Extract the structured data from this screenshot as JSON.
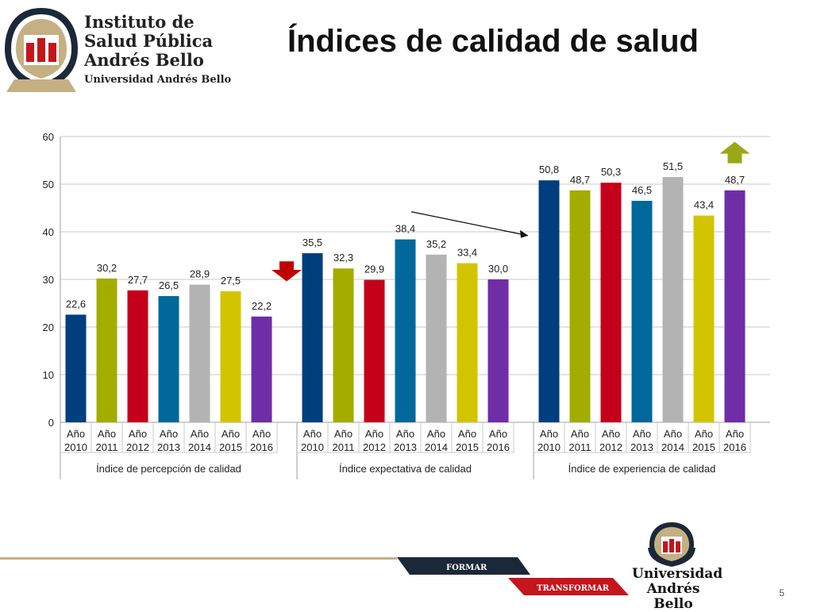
{
  "header": {
    "logo_line1": "Instituto de",
    "logo_line2": "Salud Pública",
    "logo_line3": "Andrés Bello",
    "logo_sub": "Universidad Andrés Bello",
    "title": "Índices de calidad de salud"
  },
  "footer": {
    "band1": "FORMAR",
    "band2": "TRANSFORMAR",
    "univ_line1": "Universidad",
    "univ_line2": "Andrés Bello",
    "page_number": "5"
  },
  "colors": {
    "year_colors": [
      "#003f7d",
      "#a2ad00",
      "#c4001a",
      "#00689b",
      "#b3b3b3",
      "#d3c400",
      "#6f2da8"
    ],
    "down_arrow": "#c00000",
    "up_arrow": "#9aa815",
    "brand_red": "#c4161c",
    "brand_dark": "#1b2838"
  },
  "chart_data": {
    "type": "bar",
    "title": "Índices de calidad de salud",
    "ylim": [
      0,
      60
    ],
    "yticks": [
      "0",
      "10",
      "20",
      "30",
      "40",
      "50",
      "60"
    ],
    "year_labels": [
      [
        "Año",
        "2010"
      ],
      [
        "Año",
        "2011"
      ],
      [
        "Año",
        "2012"
      ],
      [
        "Año",
        "2013"
      ],
      [
        "Año",
        "2014"
      ],
      [
        "Año",
        "2015"
      ],
      [
        "Año",
        "2016"
      ]
    ],
    "groups": [
      {
        "name": "Índice de percepción de calidad",
        "values": [
          22.6,
          30.2,
          27.7,
          26.5,
          28.9,
          27.5,
          22.2
        ],
        "labels": [
          "22,6",
          "30,2",
          "27,7",
          "26,5",
          "28,9",
          "27,5",
          "22,2"
        ]
      },
      {
        "name": "Índice expectativa de calidad",
        "values": [
          35.5,
          32.3,
          29.9,
          38.4,
          35.2,
          33.4,
          30.0
        ],
        "labels": [
          "35,5",
          "32,3",
          "29,9",
          "38,4",
          "35,2",
          "33,4",
          "30,0"
        ]
      },
      {
        "name": "Índice de experiencia de calidad",
        "values": [
          50.8,
          48.7,
          50.3,
          46.5,
          51.5,
          43.4,
          48.7
        ],
        "labels": [
          "50,8",
          "48,7",
          "50,3",
          "46,5",
          "51,5",
          "43,4",
          "48,7"
        ]
      }
    ],
    "grid": true,
    "annotations": [
      "down-arrow after 2016 in group 1",
      "trend arrow in group 2",
      "up-arrow after 2016 in group 3"
    ]
  }
}
